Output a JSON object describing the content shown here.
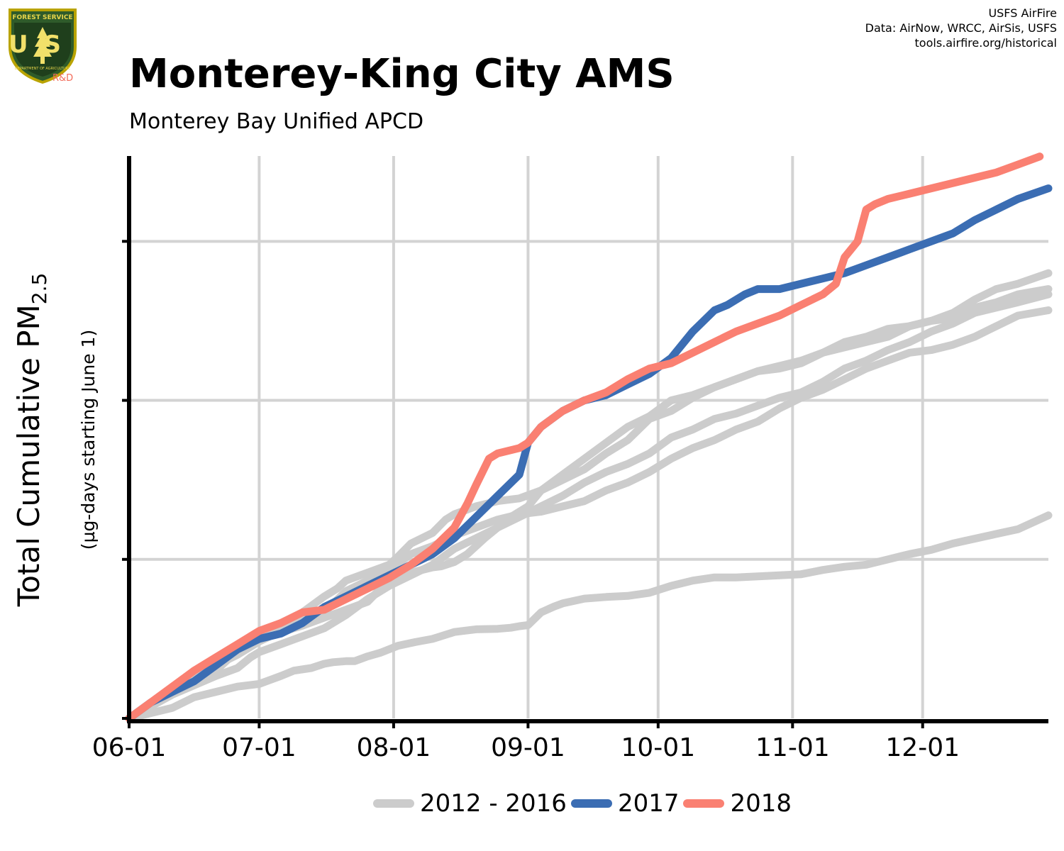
{
  "header": {
    "title": "Monterey-King City AMS",
    "subtitle": "Monterey Bay Unified APCD",
    "credits": [
      "USFS AirFire",
      "Data: AirNow, WRCC, AirSis, USFS",
      "tools.airfire.org/historical"
    ],
    "logo": {
      "top_text": "FOREST SERVICE",
      "letters": "US",
      "bottom_text": "DEPARTMENT OF AGRICULTURE",
      "rd_label": "R&D",
      "icon": "tree-icon"
    }
  },
  "colors": {
    "historical": "#cccccc",
    "y2017": "#3b6db3",
    "y2018": "#fa8072",
    "grid": "#d3d3d3",
    "axis": "#000000"
  },
  "chart_data": {
    "type": "line",
    "title": "Monterey-King City AMS",
    "subtitle": "Monterey Bay Unified APCD",
    "ylabel_main": "Total Cumulative PM",
    "ylabel_sub": "2.5",
    "ylabel_note": "(µg-days starting June 1)",
    "x_unit": "day of season starting June 1",
    "xlim": [
      0,
      212
    ],
    "ylim": [
      0,
      1.061
    ],
    "y_note": "no y tick labels printed; values normalized so the first gridline above 0 = 0.3",
    "x_ticks": [
      {
        "label": "06-01",
        "x": 0
      },
      {
        "label": "07-01",
        "x": 30
      },
      {
        "label": "08-01",
        "x": 61
      },
      {
        "label": "09-01",
        "x": 92
      },
      {
        "label": "10-01",
        "x": 122
      },
      {
        "label": "11-01",
        "x": 153
      },
      {
        "label": "12-01",
        "x": 183
      }
    ],
    "y_grid": [
      0.3,
      0.6,
      0.9
    ],
    "grid": true,
    "legend": {
      "position": "bottom",
      "entries": [
        {
          "label": "2012 - 2016",
          "color": "#cccccc"
        },
        {
          "label": "2017",
          "color": "#3b6db3"
        },
        {
          "label": "2018",
          "color": "#fa8072"
        }
      ]
    },
    "series": [
      {
        "group": "2012 - 2016",
        "color": "#cccccc",
        "x": [
          0,
          10,
          15,
          20,
          25,
          30,
          35,
          38,
          42,
          45,
          47,
          50,
          52,
          55,
          58,
          62,
          66,
          70,
          75,
          80,
          85,
          88,
          90,
          92,
          95,
          98,
          100,
          105,
          110,
          115,
          120,
          125,
          130,
          135,
          140,
          145,
          150,
          155,
          160,
          165,
          170,
          175,
          180,
          185,
          190,
          195,
          200,
          205,
          212
        ],
        "y": [
          0,
          0.02,
          0.04,
          0.05,
          0.06,
          0.065,
          0.08,
          0.09,
          0.095,
          0.103,
          0.106,
          0.108,
          0.108,
          0.117,
          0.124,
          0.137,
          0.144,
          0.15,
          0.163,
          0.168,
          0.169,
          0.171,
          0.174,
          0.176,
          0.2,
          0.211,
          0.217,
          0.226,
          0.229,
          0.231,
          0.237,
          0.25,
          0.26,
          0.266,
          0.266,
          0.268,
          0.27,
          0.272,
          0.28,
          0.286,
          0.29,
          0.3,
          0.31,
          0.318,
          0.33,
          0.339,
          0.348,
          0.357,
          0.383
        ]
      },
      {
        "group": "2012 - 2016",
        "color": "#cccccc",
        "x": [
          0,
          10,
          20,
          26,
          30,
          35,
          40,
          45,
          50,
          55,
          58,
          62,
          65,
          70,
          72,
          75,
          78,
          82,
          85,
          88,
          90,
          92,
          95,
          100,
          105,
          110,
          115,
          120,
          125,
          130,
          135,
          140,
          145,
          150,
          155,
          160,
          165,
          170,
          175,
          180,
          185,
          190,
          195,
          200,
          205,
          212
        ],
        "y": [
          0,
          0.05,
          0.09,
          0.135,
          0.155,
          0.163,
          0.175,
          0.19,
          0.205,
          0.22,
          0.245,
          0.26,
          0.275,
          0.285,
          0.287,
          0.295,
          0.31,
          0.34,
          0.36,
          0.38,
          0.39,
          0.4,
          0.43,
          0.46,
          0.49,
          0.52,
          0.55,
          0.57,
          0.6,
          0.61,
          0.625,
          0.64,
          0.655,
          0.66,
          0.67,
          0.69,
          0.71,
          0.72,
          0.735,
          0.74,
          0.75,
          0.765,
          0.79,
          0.81,
          0.82,
          0.84
        ]
      },
      {
        "group": "2012 - 2016",
        "color": "#cccccc",
        "x": [
          0,
          10,
          20,
          25,
          28,
          30,
          35,
          40,
          45,
          50,
          55,
          60,
          65,
          70,
          75,
          80,
          85,
          90,
          95,
          100,
          105,
          110,
          115,
          120,
          125,
          130,
          135,
          140,
          145,
          150,
          155,
          160,
          165,
          170,
          175,
          180,
          185,
          190,
          195,
          200,
          205,
          212
        ],
        "y": [
          0,
          0.045,
          0.08,
          0.095,
          0.115,
          0.125,
          0.14,
          0.155,
          0.17,
          0.195,
          0.225,
          0.25,
          0.27,
          0.29,
          0.32,
          0.34,
          0.36,
          0.38,
          0.4,
          0.42,
          0.445,
          0.465,
          0.48,
          0.5,
          0.53,
          0.545,
          0.565,
          0.575,
          0.59,
          0.605,
          0.615,
          0.635,
          0.66,
          0.675,
          0.695,
          0.71,
          0.73,
          0.745,
          0.765,
          0.775,
          0.785,
          0.8
        ]
      },
      {
        "group": "2012 - 2016",
        "color": "#cccccc",
        "x": [
          0,
          10,
          15,
          20,
          25,
          30,
          35,
          40,
          45,
          50,
          55,
          60,
          65,
          70,
          75,
          80,
          85,
          90,
          95,
          100,
          105,
          110,
          115,
          120,
          125,
          130,
          135,
          140,
          145,
          150,
          155,
          160,
          165,
          170,
          175,
          180,
          185,
          190,
          195,
          200,
          205,
          212
        ],
        "y": [
          0,
          0.05,
          0.09,
          0.1,
          0.12,
          0.145,
          0.165,
          0.185,
          0.2,
          0.24,
          0.26,
          0.28,
          0.31,
          0.325,
          0.345,
          0.36,
          0.375,
          0.385,
          0.39,
          0.4,
          0.41,
          0.43,
          0.445,
          0.465,
          0.49,
          0.51,
          0.525,
          0.545,
          0.56,
          0.585,
          0.605,
          0.62,
          0.64,
          0.66,
          0.675,
          0.69,
          0.695,
          0.705,
          0.72,
          0.74,
          0.76,
          0.77
        ]
      },
      {
        "group": "2012 - 2016",
        "color": "#cccccc",
        "x": [
          0,
          10,
          20,
          25,
          28,
          30,
          35,
          40,
          45,
          48,
          50,
          55,
          60,
          62,
          65,
          70,
          73,
          75,
          80,
          85,
          90,
          95,
          100,
          105,
          110,
          115,
          120,
          125,
          130,
          135,
          140,
          145,
          150,
          155,
          160,
          165,
          170,
          175,
          180,
          185,
          190,
          195,
          200,
          205,
          212
        ],
        "y": [
          0,
          0.05,
          0.1,
          0.13,
          0.155,
          0.163,
          0.18,
          0.2,
          0.23,
          0.245,
          0.26,
          0.275,
          0.29,
          0.305,
          0.33,
          0.35,
          0.375,
          0.385,
          0.4,
          0.41,
          0.415,
          0.43,
          0.45,
          0.47,
          0.5,
          0.525,
          0.565,
          0.58,
          0.605,
          0.625,
          0.64,
          0.655,
          0.665,
          0.675,
          0.69,
          0.7,
          0.71,
          0.72,
          0.74,
          0.75,
          0.755,
          0.775,
          0.785,
          0.8,
          0.81
        ]
      },
      {
        "group": "2017",
        "color": "#3b6db3",
        "x": [
          0,
          5,
          10,
          15,
          20,
          25,
          30,
          35,
          40,
          45,
          50,
          55,
          60,
          65,
          70,
          75,
          80,
          85,
          90,
          92,
          95,
          100,
          105,
          110,
          115,
          120,
          125,
          130,
          135,
          138,
          142,
          145,
          150,
          155,
          160,
          165,
          170,
          175,
          180,
          185,
          190,
          195,
          200,
          205,
          212
        ],
        "y": [
          0,
          0.03,
          0.05,
          0.07,
          0.1,
          0.13,
          0.15,
          0.16,
          0.18,
          0.21,
          0.23,
          0.25,
          0.27,
          0.29,
          0.31,
          0.34,
          0.38,
          0.42,
          0.46,
          0.52,
          0.55,
          0.58,
          0.6,
          0.61,
          0.63,
          0.65,
          0.68,
          0.73,
          0.77,
          0.78,
          0.8,
          0.81,
          0.81,
          0.82,
          0.83,
          0.84,
          0.855,
          0.87,
          0.885,
          0.9,
          0.915,
          0.94,
          0.96,
          0.98,
          1.0
        ]
      },
      {
        "group": "2018",
        "color": "#fa8072",
        "x": [
          0,
          5,
          10,
          15,
          20,
          25,
          30,
          35,
          40,
          45,
          50,
          55,
          60,
          65,
          70,
          75,
          78,
          80,
          83,
          85,
          90,
          92,
          95,
          100,
          105,
          110,
          115,
          120,
          125,
          130,
          135,
          140,
          145,
          150,
          155,
          160,
          163,
          165,
          168,
          170,
          172,
          175,
          180,
          185,
          190,
          195,
          200,
          205,
          210
        ],
        "y": [
          0,
          0.03,
          0.06,
          0.09,
          0.115,
          0.14,
          0.165,
          0.18,
          0.2,
          0.205,
          0.225,
          0.245,
          0.265,
          0.29,
          0.32,
          0.36,
          0.405,
          0.44,
          0.49,
          0.5,
          0.51,
          0.52,
          0.55,
          0.58,
          0.6,
          0.615,
          0.64,
          0.66,
          0.67,
          0.69,
          0.71,
          0.73,
          0.745,
          0.76,
          0.78,
          0.8,
          0.82,
          0.87,
          0.9,
          0.96,
          0.97,
          0.98,
          0.99,
          1.0,
          1.01,
          1.02,
          1.03,
          1.045,
          1.06
        ]
      }
    ]
  }
}
